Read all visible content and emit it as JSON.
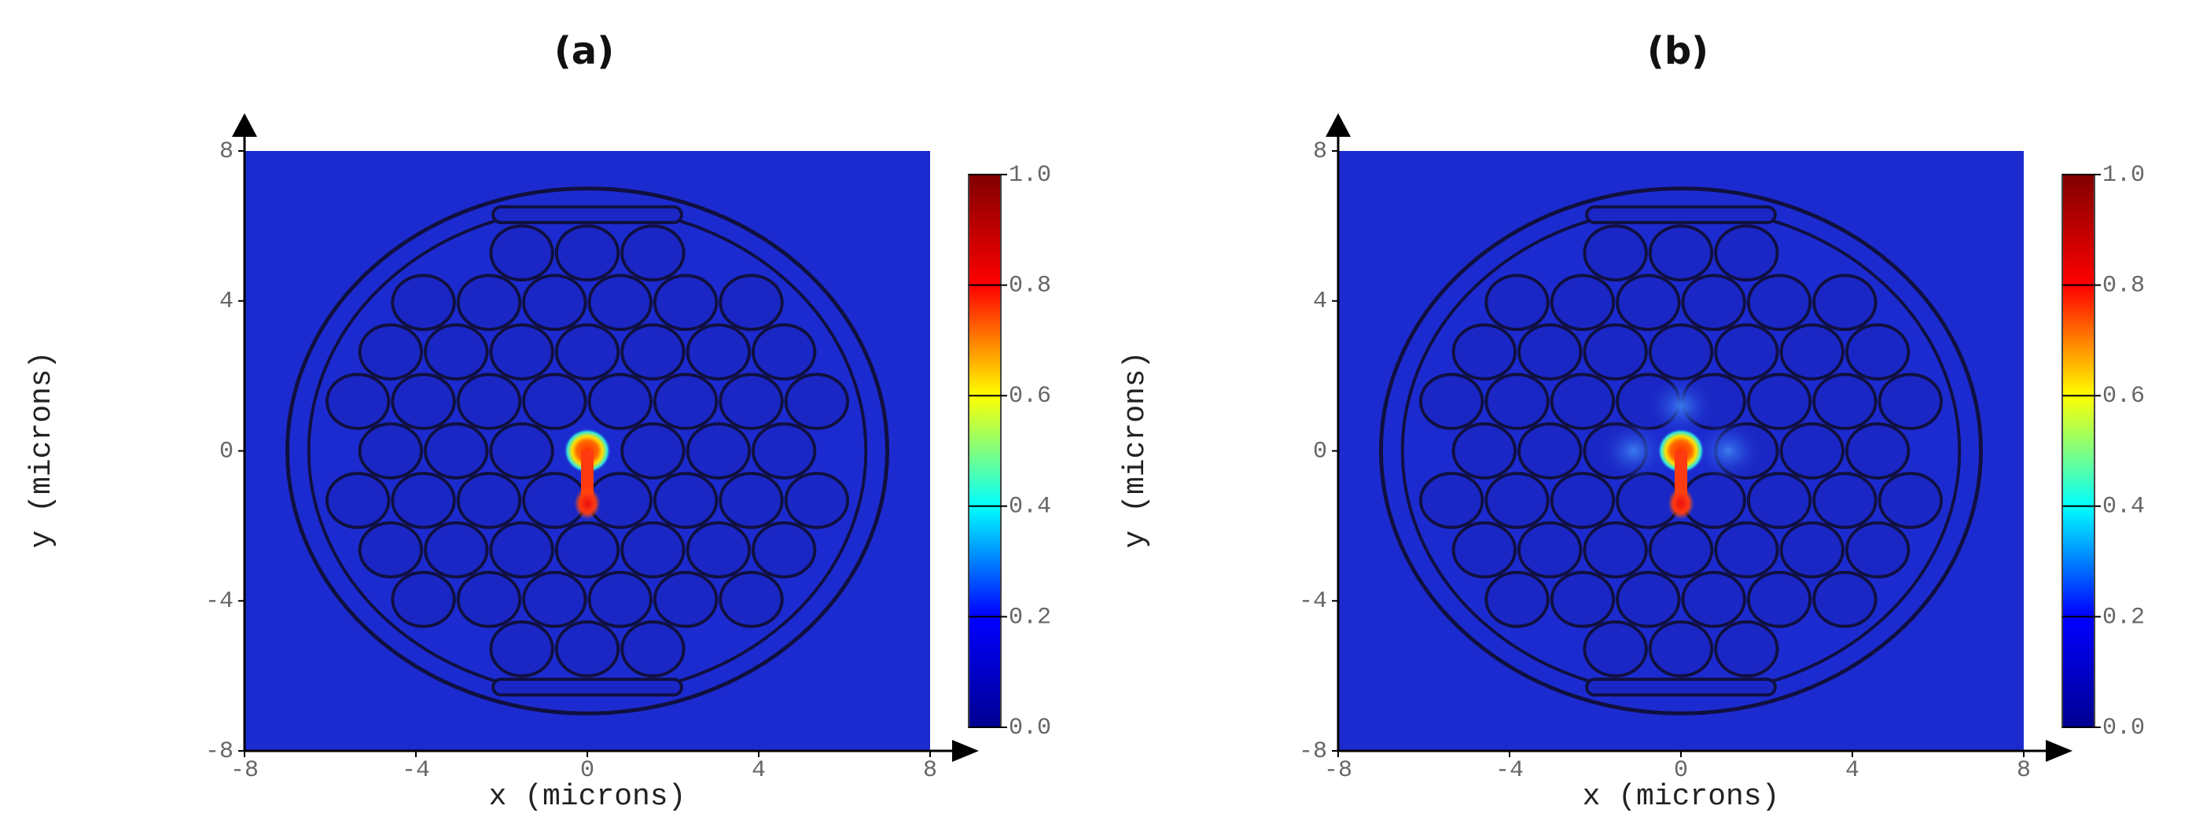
{
  "chart_data": [
    {
      "type": "heatmap",
      "title": "(a)",
      "x_label": "x (microns)",
      "y_label": "y (microns)",
      "xlim": [
        -8,
        8
      ],
      "ylim": [
        -8,
        8
      ],
      "xticks": [
        -8,
        -4,
        0,
        4,
        8
      ],
      "yticks": [
        -8,
        -4,
        0,
        4,
        8
      ],
      "colorbar": {
        "lim": [
          0,
          1
        ],
        "ticks": [
          {
            "value": 0,
            "label": "0.0"
          },
          0.2,
          0.4,
          0.6,
          0.8,
          {
            "value": 1,
            "label": "1.0"
          }
        ],
        "colors": [
          "#00008f",
          "#0000ff",
          "#00ffff",
          "#ffff00",
          "#ff0000",
          "#800000"
        ]
      }
    },
    {
      "type": "heatmap",
      "title": "(b)",
      "x_label": "x (microns)",
      "y_label": "y (microns)",
      "xlim": [
        -8,
        8
      ],
      "ylim": [
        -8,
        8
      ],
      "xticks": [
        -8,
        -4,
        0,
        4,
        8
      ],
      "yticks": [
        -8,
        -4,
        0,
        4,
        8
      ],
      "colorbar": {
        "lim": [
          0,
          1
        ],
        "ticks": [
          {
            "value": 0,
            "label": "0.0"
          },
          0.2,
          0.4,
          0.6,
          0.8,
          {
            "value": 1,
            "label": "1.0"
          }
        ],
        "colors": [
          "#00008f",
          "#0000ff",
          "#00ffff",
          "#ffff00",
          "#ff0000",
          "#800000"
        ]
      }
    }
  ]
}
